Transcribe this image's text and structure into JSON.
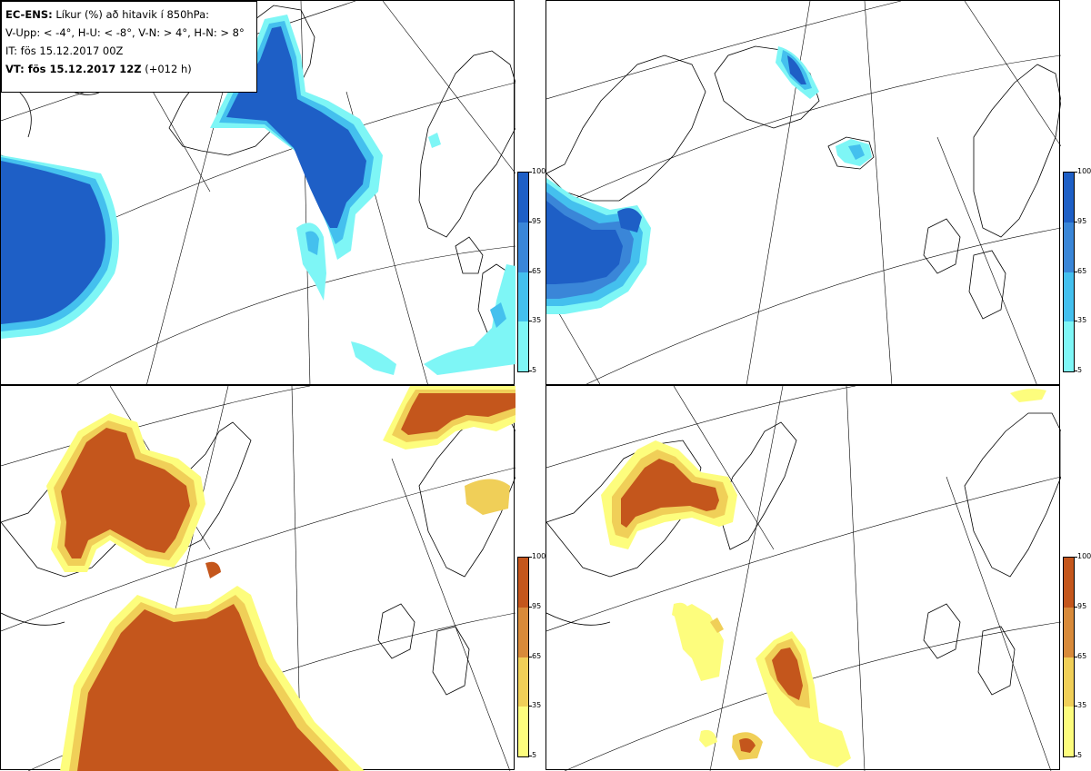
{
  "header": {
    "line1_bold": "EC-ENS:",
    "line1_rest": " Líkur (%) að hitavik í 850hPa:",
    "line2": "V-Upp: < -4°, H-U: < -8°, V-N: > 4°, H-N: > 8°",
    "line3": "IT: fös 15.12.2017 00Z",
    "line4_bold": "VT: fös 15.12.2017 12Z",
    "line4_rest": " (+012 h)"
  },
  "colorbar_ticks": [
    "100",
    "95",
    "65",
    "35",
    "5"
  ],
  "colors": {
    "cold": [
      "#7ef6f6",
      "#44c0ee",
      "#3a86d8",
      "#1e5fc6"
    ],
    "warm": [
      "#fdfd7d",
      "#f0cf58",
      "#d88a3a",
      "#c4561c"
    ]
  }
}
